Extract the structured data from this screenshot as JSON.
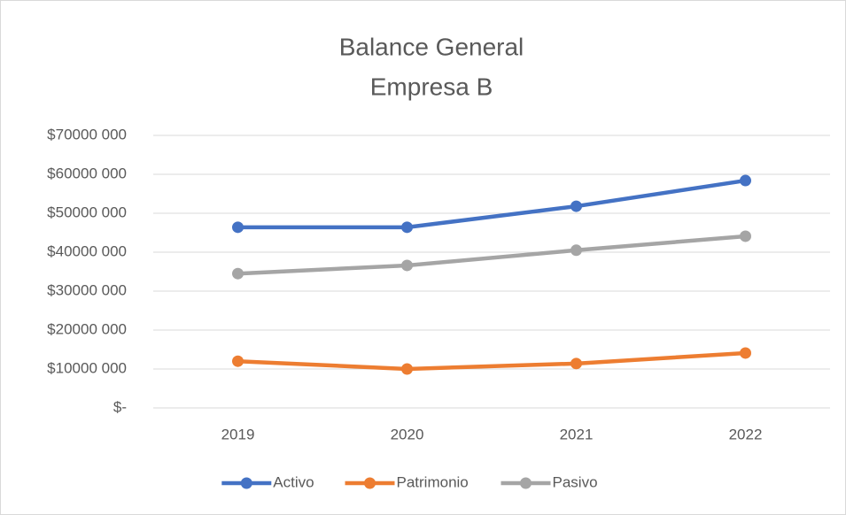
{
  "chart_data": {
    "type": "line",
    "title": "Balance General",
    "subtitle": "Empresa B",
    "categories": [
      "2019",
      "2020",
      "2021",
      "2022"
    ],
    "series": [
      {
        "name": "Activo",
        "color": "#4472c4",
        "values": [
          46400000,
          46400000,
          51800000,
          58400000
        ]
      },
      {
        "name": "Patrimonio",
        "color": "#ed7d31",
        "values": [
          12000000,
          10000000,
          11400000,
          14100000
        ]
      },
      {
        "name": "Pasivo",
        "color": "#a5a5a5",
        "values": [
          34500000,
          36600000,
          40500000,
          44100000
        ]
      }
    ],
    "ylim": [
      0,
      70000000
    ],
    "yticks": [
      {
        "value": 0,
        "label": "$-"
      },
      {
        "value": 10000000,
        "label": "$10000 000"
      },
      {
        "value": 20000000,
        "label": "$20000 000"
      },
      {
        "value": 30000000,
        "label": "$30000 000"
      },
      {
        "value": 40000000,
        "label": "$40000 000"
      },
      {
        "value": 50000000,
        "label": "$50000 000"
      },
      {
        "value": 60000000,
        "label": "$60000 000"
      },
      {
        "value": 70000000,
        "label": "$70000 000"
      }
    ],
    "grid": true,
    "legend": "bottom"
  }
}
